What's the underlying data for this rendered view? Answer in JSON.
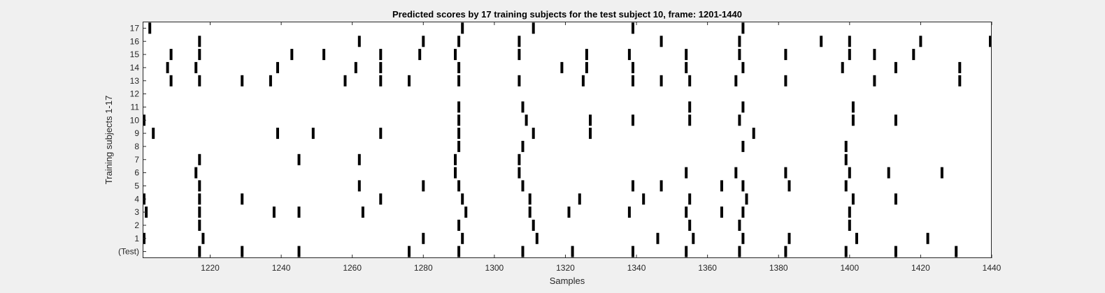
{
  "chart_data": {
    "type": "scatter",
    "title": "Predicted scores by 17 training subjects for the test subject 10, frame: 1201-1440",
    "xlabel": "Samples",
    "ylabel": "Training subjects 1-17",
    "xlim": [
      1201,
      1440
    ],
    "ylim": [
      0,
      17
    ],
    "x_ticks": [
      1220,
      1240,
      1260,
      1280,
      1300,
      1320,
      1340,
      1360,
      1380,
      1400,
      1420,
      1440
    ],
    "y_ticks": [
      0,
      1,
      2,
      3,
      4,
      5,
      6,
      7,
      8,
      9,
      10,
      11,
      12,
      13,
      14,
      15,
      16,
      17
    ],
    "y_tick_labels": [
      "(Test)",
      "1",
      "2",
      "3",
      "4",
      "5",
      "6",
      "7",
      "8",
      "9",
      "10",
      "11",
      "12",
      "13",
      "14",
      "15",
      "16",
      "17"
    ],
    "grid": false,
    "legend": "none",
    "mark_color": "#000000",
    "background_color": "#ffffff",
    "rows": [
      {
        "label": "(Test)",
        "samples": [
          1217,
          1229,
          1245,
          1276,
          1290,
          1308,
          1322,
          1339,
          1354,
          1369,
          1382,
          1399,
          1413,
          1430
        ]
      },
      {
        "label": "1",
        "samples": [
          1201,
          1218,
          1280,
          1291,
          1312,
          1346,
          1356,
          1370,
          1383,
          1402,
          1422
        ]
      },
      {
        "label": "2",
        "samples": [
          1217,
          1290,
          1311,
          1355,
          1369,
          1400
        ]
      },
      {
        "label": "3",
        "samples": [
          1202,
          1217,
          1238,
          1245,
          1263,
          1292,
          1310,
          1321,
          1338,
          1354,
          1364,
          1370,
          1400
        ]
      },
      {
        "label": "4",
        "samples": [
          1201,
          1217,
          1229,
          1268,
          1291,
          1310,
          1324,
          1342,
          1355,
          1371,
          1401,
          1413
        ]
      },
      {
        "label": "5",
        "samples": [
          1217,
          1262,
          1280,
          1290,
          1308,
          1339,
          1347,
          1364,
          1370,
          1383,
          1399
        ]
      },
      {
        "label": "6",
        "samples": [
          1216,
          1289,
          1307,
          1354,
          1368,
          1382,
          1400,
          1411,
          1426
        ]
      },
      {
        "label": "7",
        "samples": [
          1217,
          1245,
          1262,
          1289,
          1307,
          1399
        ]
      },
      {
        "label": "8",
        "samples": [
          1290,
          1308,
          1370,
          1399
        ]
      },
      {
        "label": "9",
        "samples": [
          1204,
          1239,
          1249,
          1268,
          1290,
          1311,
          1327,
          1373
        ]
      },
      {
        "label": "10",
        "samples": [
          1201,
          1290,
          1309,
          1327,
          1339,
          1355,
          1369,
          1401,
          1413
        ]
      },
      {
        "label": "11",
        "samples": [
          1290,
          1308,
          1355,
          1370,
          1401
        ]
      },
      {
        "label": "12",
        "samples": []
      },
      {
        "label": "13",
        "samples": [
          1209,
          1217,
          1229,
          1237,
          1258,
          1268,
          1276,
          1290,
          1307,
          1325,
          1339,
          1347,
          1355,
          1368,
          1382,
          1407,
          1431
        ]
      },
      {
        "label": "14",
        "samples": [
          1208,
          1216,
          1239,
          1261,
          1268,
          1290,
          1319,
          1326,
          1339,
          1354,
          1370,
          1398,
          1413,
          1431
        ]
      },
      {
        "label": "15",
        "samples": [
          1209,
          1217,
          1243,
          1252,
          1268,
          1279,
          1289,
          1307,
          1326,
          1338,
          1354,
          1369,
          1382,
          1400,
          1407,
          1418
        ]
      },
      {
        "label": "16",
        "samples": [
          1217,
          1262,
          1280,
          1290,
          1307,
          1347,
          1369,
          1392,
          1400,
          1420,
          1440
        ]
      },
      {
        "label": "17",
        "samples": [
          1203,
          1291,
          1311,
          1339,
          1370
        ]
      }
    ]
  }
}
